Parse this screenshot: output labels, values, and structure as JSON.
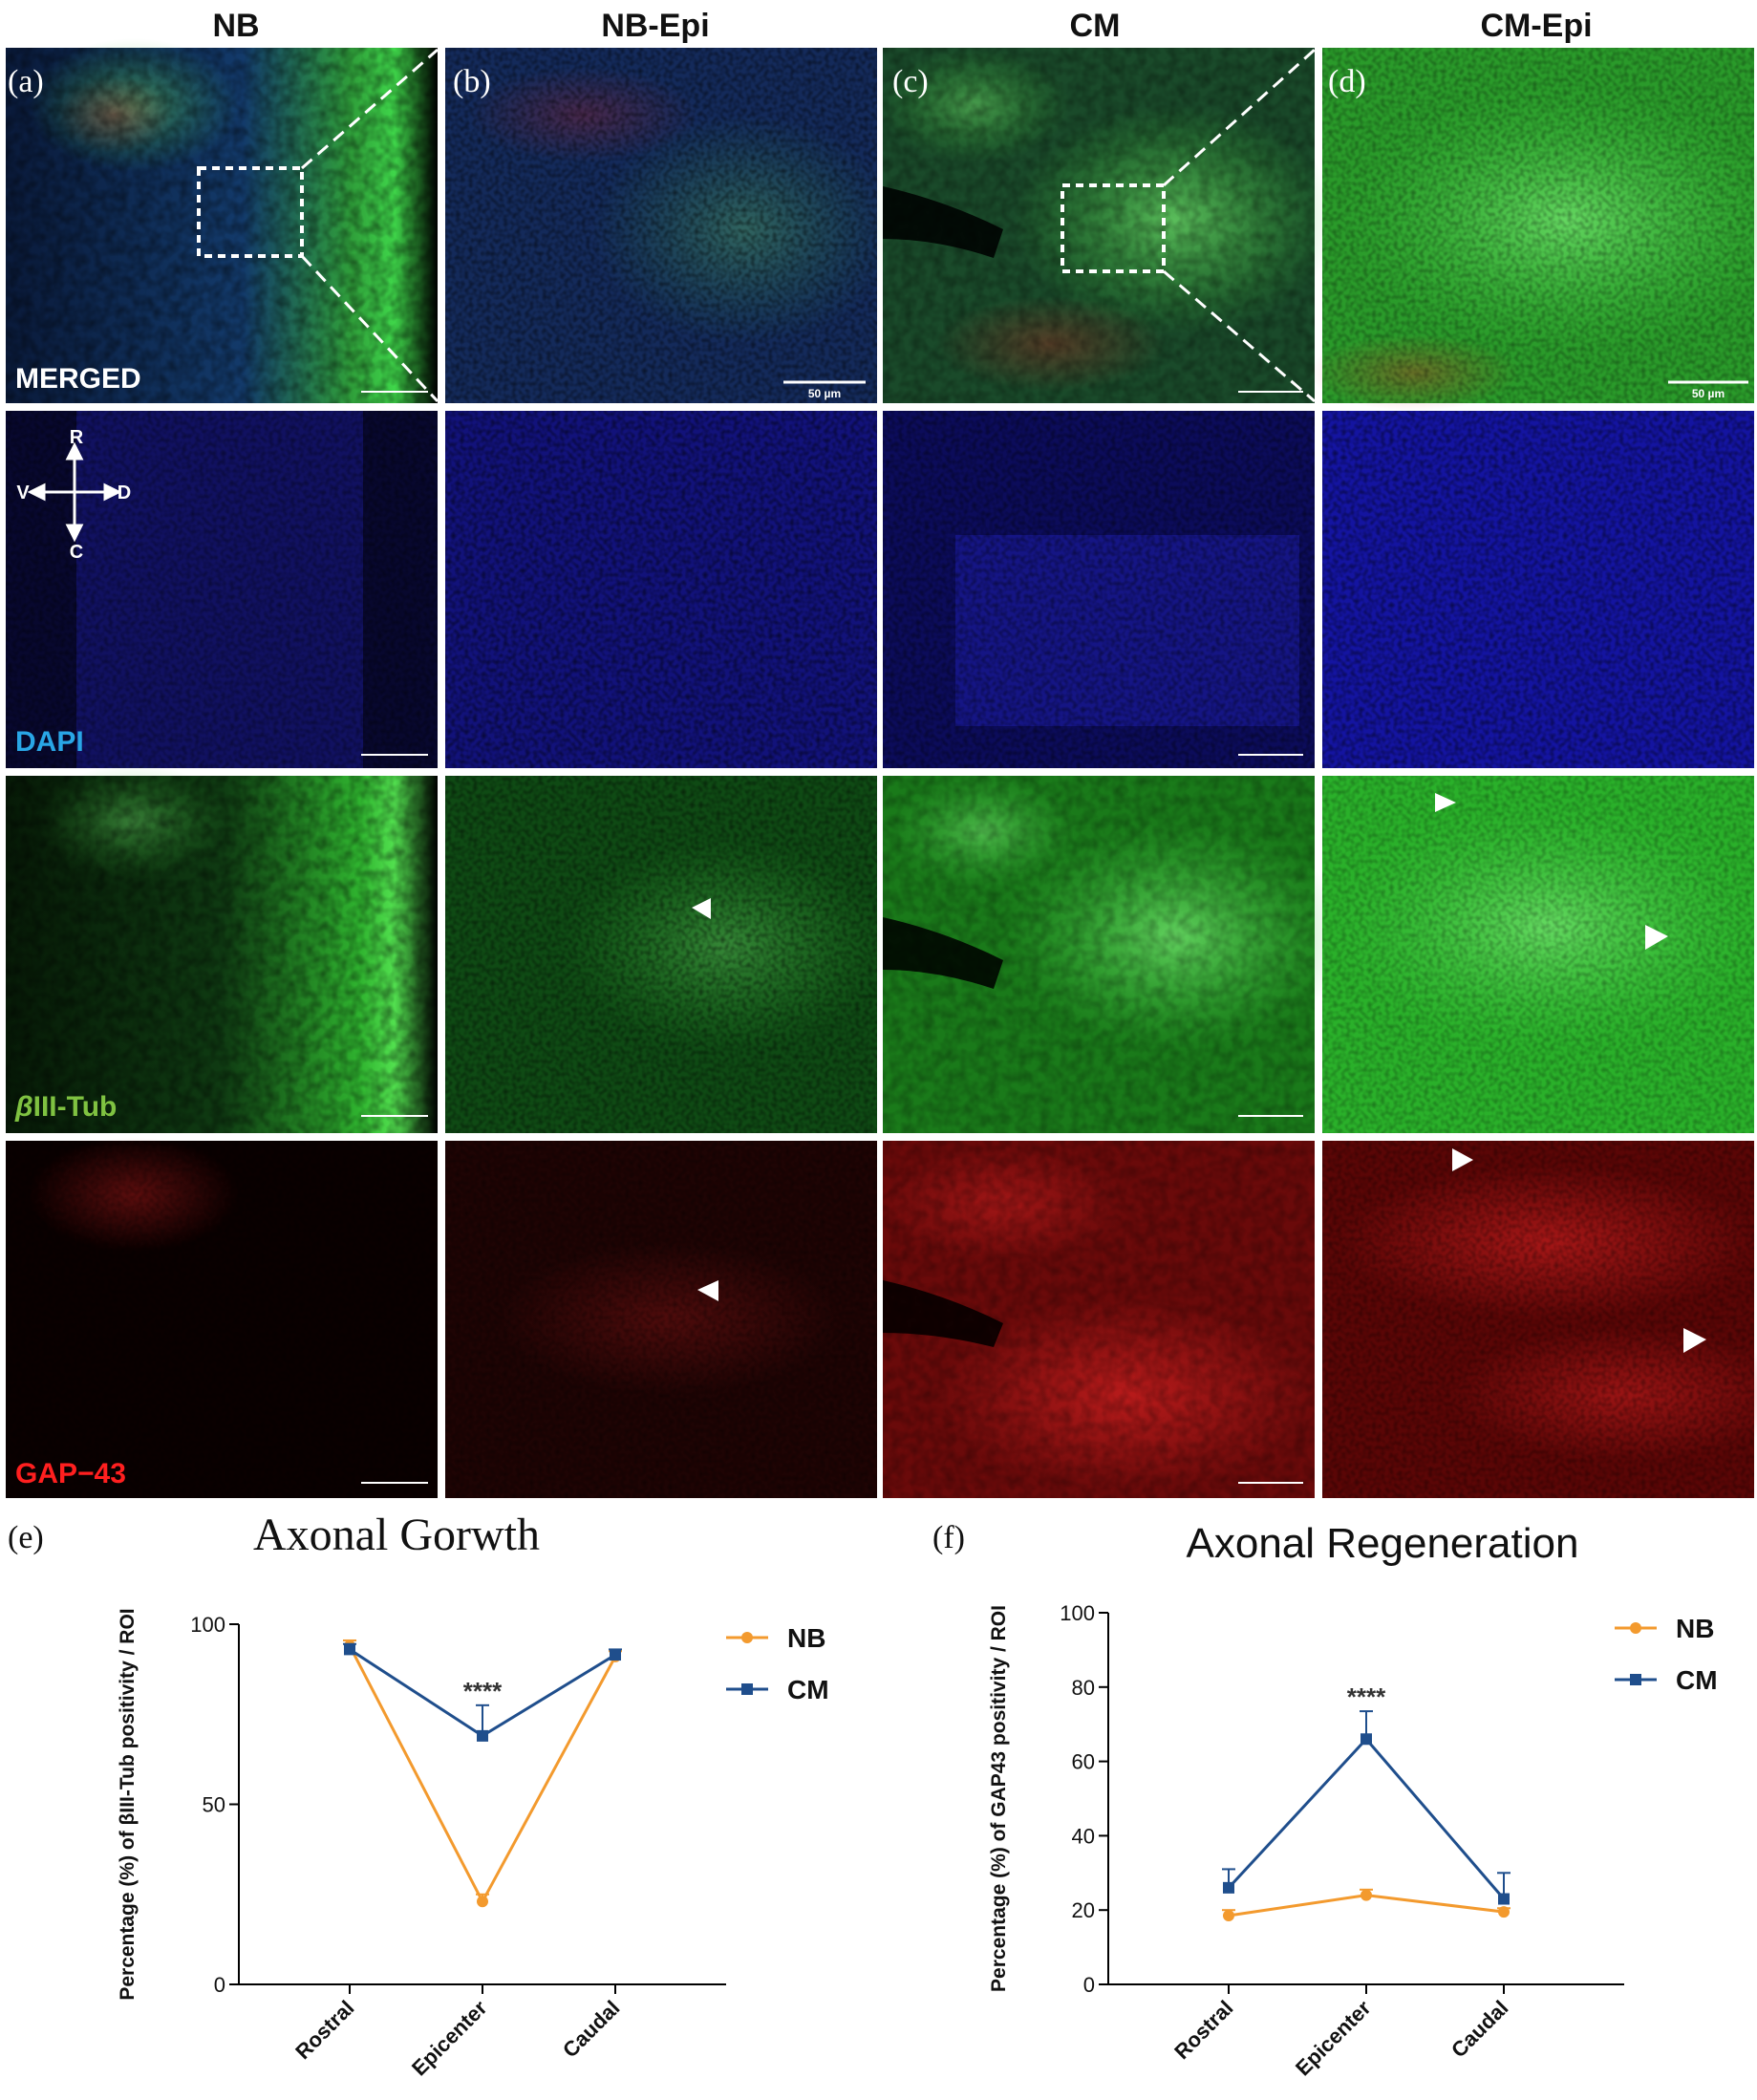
{
  "columns": [
    "NB",
    "NB-Epi",
    "CM",
    "CM-Epi"
  ],
  "panel_labels": [
    "(a)",
    "(b)",
    "(c)",
    "(d)",
    "(e)",
    "(f)"
  ],
  "row_labels": [
    {
      "prefix": "",
      "text": "MERGED",
      "color": "#ffffff"
    },
    {
      "prefix": "",
      "text": "DAPI",
      "color": "#29a6e6"
    },
    {
      "prefix": "β",
      "text": "III-Tub",
      "color": "#7fc241"
    },
    {
      "prefix": "",
      "text": "GAP−43",
      "color": "#ff1f1f"
    }
  ],
  "scale_bar_label": "50 µm",
  "orientation": {
    "up": "R",
    "down": "C",
    "left": "V",
    "right": "D"
  },
  "colors": {
    "nb": "#f39a2e",
    "cm": "#1f4e8c",
    "merged_green": "#2fbf2f",
    "dapi": "#1a1aa8",
    "tub": "#22d022",
    "gap": "#e01818"
  },
  "chart_data": [
    {
      "type": "line",
      "title": "Axonal Gorwth",
      "ylabel": "Percentage (%) of βIII-Tub positivity / ROI",
      "xlabel": "",
      "categories": [
        "Rostral",
        "Epicenter",
        "Caudal"
      ],
      "ylim": [
        0,
        100
      ],
      "yticks": [
        0,
        50,
        100
      ],
      "legend_position": "top-right",
      "series": [
        {
          "name": "NB",
          "values": [
            94,
            23,
            91
          ],
          "errors": [
            1.5,
            2,
            1.5
          ],
          "marker": "circle"
        },
        {
          "name": "CM",
          "values": [
            93,
            69,
            91.5
          ],
          "errors": [
            1.5,
            8.5,
            1.5
          ],
          "marker": "square"
        }
      ],
      "annotations": [
        {
          "text": "****",
          "category": "Epicenter"
        }
      ]
    },
    {
      "type": "line",
      "title": "Axonal Regeneration",
      "ylabel": "Percentage (%) of GAP43 positivity / ROI",
      "xlabel": "",
      "categories": [
        "Rostral",
        "Epicenter",
        "Caudal"
      ],
      "ylim": [
        0,
        100
      ],
      "yticks": [
        0,
        20,
        40,
        60,
        80,
        100
      ],
      "legend_position": "top-right",
      "series": [
        {
          "name": "NB",
          "values": [
            18.5,
            24,
            19.5
          ],
          "errors": [
            1.5,
            1.5,
            1
          ],
          "marker": "circle"
        },
        {
          "name": "CM",
          "values": [
            26,
            66,
            23
          ],
          "errors": [
            5,
            7.5,
            7
          ],
          "marker": "square"
        }
      ],
      "annotations": [
        {
          "text": "****",
          "category": "Epicenter"
        }
      ]
    }
  ]
}
